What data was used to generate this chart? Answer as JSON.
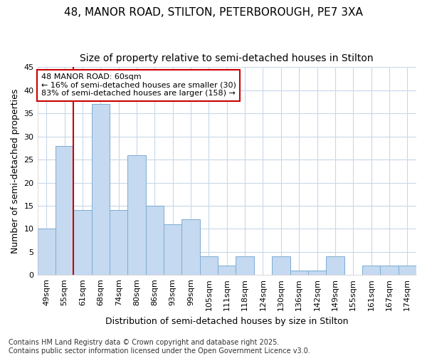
{
  "title_line1": "48, MANOR ROAD, STILTON, PETERBOROUGH, PE7 3XA",
  "title_line2": "Size of property relative to semi-detached houses in Stilton",
  "xlabel": "Distribution of semi-detached houses by size in Stilton",
  "ylabel": "Number of semi-detached properties",
  "categories": [
    "49sqm",
    "55sqm",
    "61sqm",
    "68sqm",
    "74sqm",
    "80sqm",
    "86sqm",
    "93sqm",
    "99sqm",
    "105sqm",
    "111sqm",
    "118sqm",
    "124sqm",
    "130sqm",
    "136sqm",
    "142sqm",
    "149sqm",
    "155sqm",
    "161sqm",
    "167sqm",
    "174sqm"
  ],
  "values": [
    10,
    28,
    14,
    37,
    14,
    26,
    15,
    11,
    12,
    4,
    2,
    4,
    0,
    4,
    1,
    1,
    4,
    0,
    2,
    2,
    2
  ],
  "bar_color": "#c5d9f0",
  "bar_edgecolor": "#7aadd4",
  "vline_index": 2,
  "vline_color": "#cc0000",
  "annotation_text_line1": "48 MANOR ROAD: 60sqm",
  "annotation_text_line2": "← 16% of semi-detached houses are smaller (30)",
  "annotation_text_line3": "83% of semi-detached houses are larger (158) →",
  "annotation_box_color": "#ffffff",
  "annotation_box_edgecolor": "#cc0000",
  "ylim": [
    0,
    45
  ],
  "yticks": [
    0,
    5,
    10,
    15,
    20,
    25,
    30,
    35,
    40,
    45
  ],
  "background_color": "#ffffff",
  "plot_bg_color": "#ffffff",
  "grid_color": "#c8d8e8",
  "footer_text": "Contains HM Land Registry data © Crown copyright and database right 2025.\nContains public sector information licensed under the Open Government Licence v3.0.",
  "title_fontsize": 11,
  "subtitle_fontsize": 10,
  "xlabel_fontsize": 9,
  "ylabel_fontsize": 9,
  "tick_fontsize": 8,
  "footer_fontsize": 7
}
